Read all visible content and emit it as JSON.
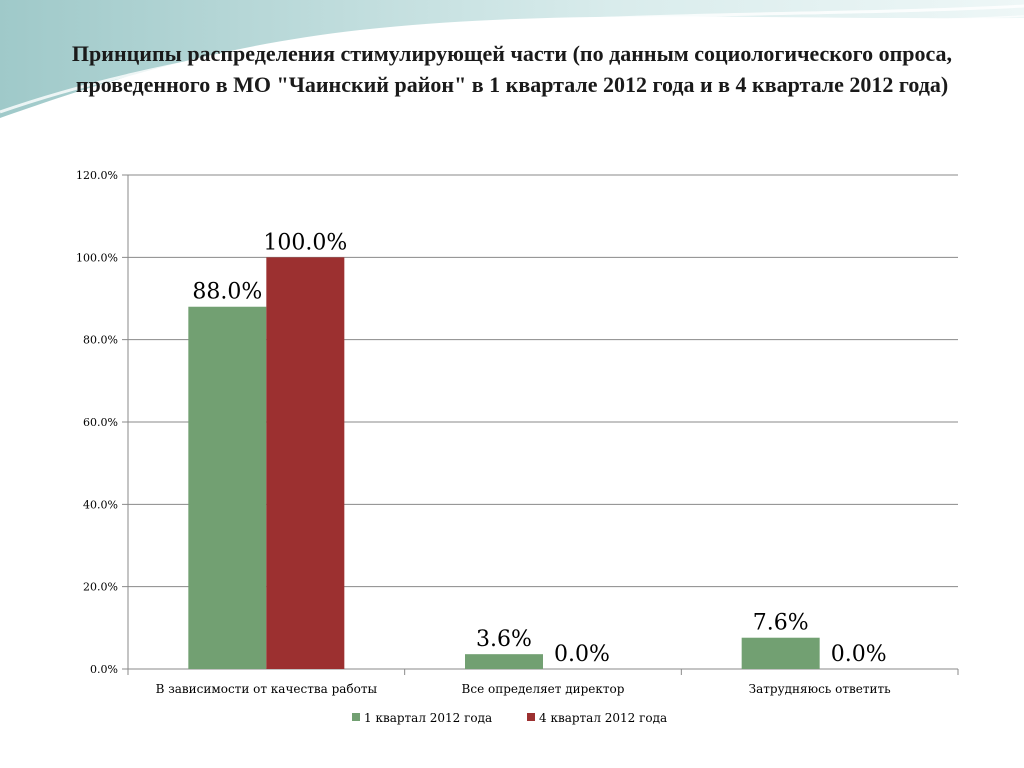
{
  "slide": {
    "title": "Принципы распределения стимулирующей части (по данным социологического опроса, проведенного в МО \"Чаинский район\" в 1 квартале 2012 года и в 4 квартале 2012 года)"
  },
  "chart_data": {
    "type": "bar",
    "categories": [
      "В зависимости от качества работы",
      "Все определяет директор",
      "Затрудняюсь ответить"
    ],
    "series": [
      {
        "name": "1 квартал 2012 года",
        "values": [
          88.0,
          3.6,
          7.6
        ],
        "color": "#72a072"
      },
      {
        "name": "4 квартал 2012 года",
        "values": [
          100.0,
          0.0,
          0.0
        ],
        "color": "#9c3030"
      }
    ],
    "data_labels": [
      [
        "88.0%",
        "3.6%",
        "7.6%"
      ],
      [
        "100.0%",
        "0.0%",
        "0.0%"
      ]
    ],
    "y_ticks": [
      "0.0%",
      "20.0%",
      "40.0%",
      "60.0%",
      "80.0%",
      "100.0%",
      "120.0%"
    ],
    "ylim": [
      0,
      120
    ],
    "grid": true,
    "legend_position": "bottom"
  }
}
